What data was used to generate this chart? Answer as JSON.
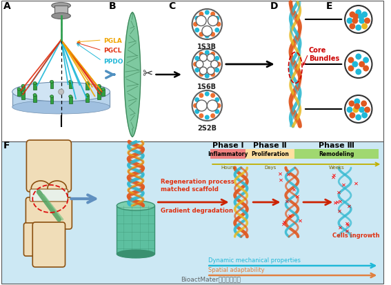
{
  "bg_color": "#ffffff",
  "panel_F_bg": "#cce8f4",
  "pgla_color": "#f0a500",
  "pgcl_color": "#e03010",
  "ppdo_color": "#20b8d8",
  "phase1_color": "#f08080",
  "phase2_color": "#ffe0a0",
  "phase3_color": "#a0d870",
  "core_bundles_color": "#cc0000",
  "arrow_color": "#5090c0",
  "scaffold_green": "#5dc0a0",
  "braid_orange": "#e05820",
  "braid_cyan": "#30b8d0",
  "braid_yellow": "#e8b820",
  "watermark_text": "BioactMater生物活性材料",
  "spatial_text": "Spatial adaptability",
  "dynamic_text": "Dynamic mechanical properties",
  "cells_text": "Cells ingrowth",
  "regen_text": "Regeneration process\nmatched scaffold",
  "gradient_text": "Gradient degradation",
  "phase1_label": "Phase Ⅰ",
  "phase2_label": "Phase Ⅱ",
  "phase3_label": "Phase Ⅲ",
  "inflammatory_label": "Inflammatory",
  "proliferation_label": "Proliferation",
  "remodeling_label": "Remodeling",
  "hours_label": "Hours",
  "days_label": "Days",
  "weeks_label": "Weeks",
  "label_1s3b": "1S3B",
  "label_1s6b": "1S6B",
  "label_2s2b": "2S2B",
  "core_bundles_label": "Core\nBundles",
  "pgla_label": "PGLA",
  "pgcl_label": "PGCL",
  "ppdo_label": "PPDO"
}
